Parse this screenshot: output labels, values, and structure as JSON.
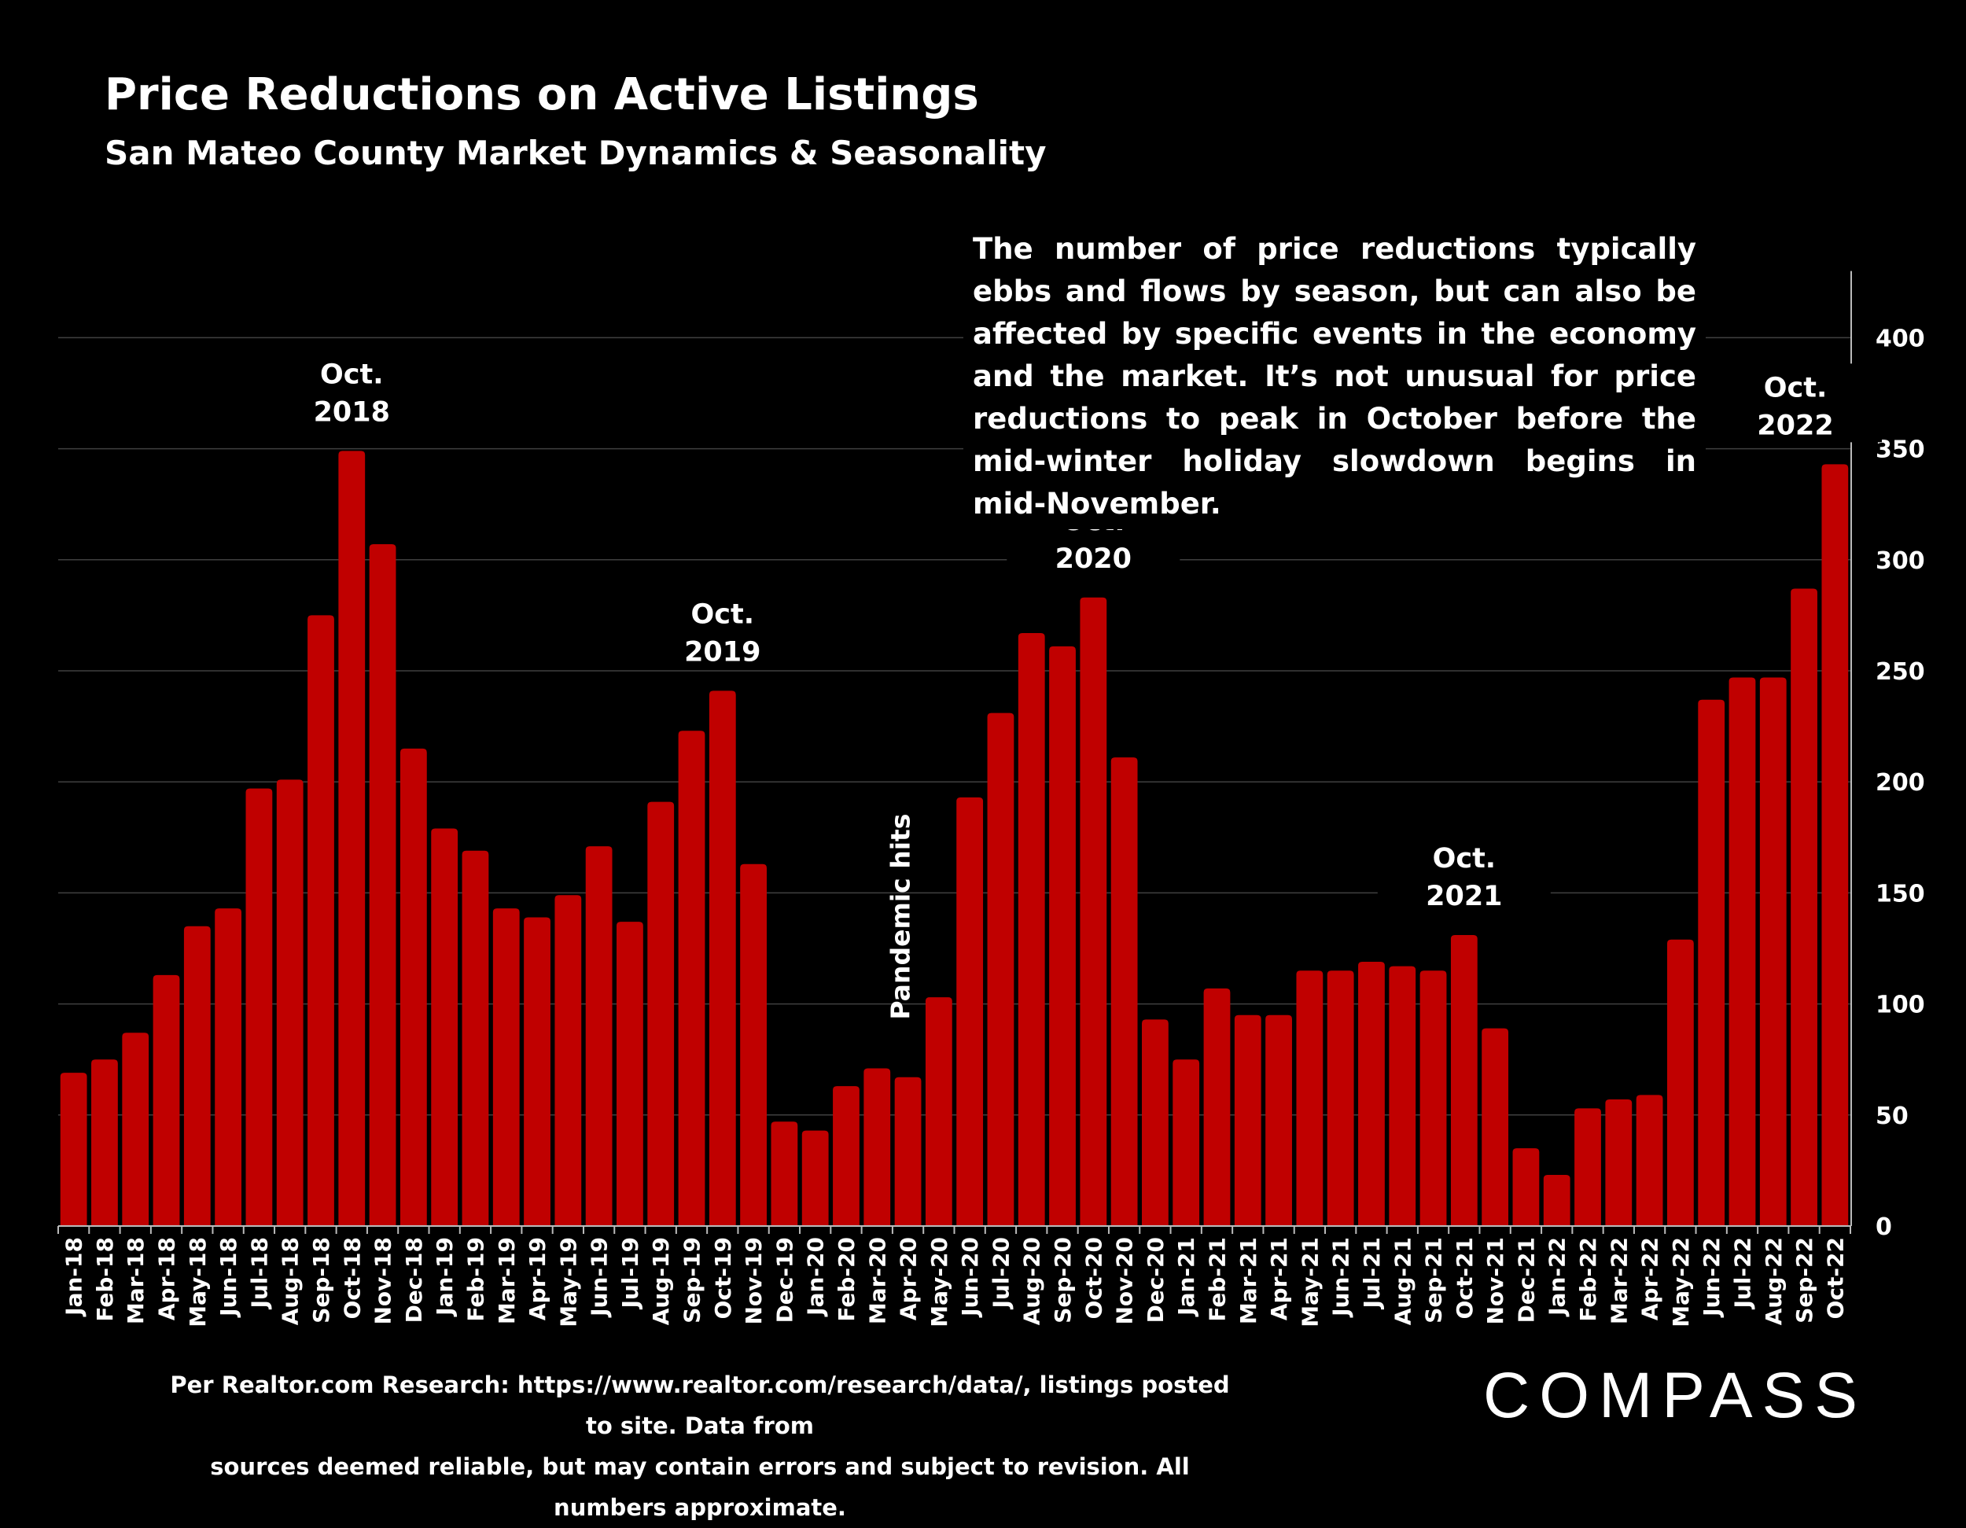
{
  "title": "Price Reductions on Active Listings",
  "subtitle": "San Mateo County Market Dynamics & Seasonality",
  "callout": "The number of price reductions typically ebbs and flows by season, but can also be affected by specific events in the economy and the market. It’s not unusual for price reductions to peak in October before the mid-winter holiday slowdown begins in mid-November.",
  "footer": {
    "line1": "Per Realtor.com Research:  https://www.realtor.com/research/data/, listings posted to site. Data from",
    "line2": "sources deemed reliable, but may contain errors and subject to revision. All numbers approximate."
  },
  "logo": {
    "text": "COMPASS"
  },
  "colors": {
    "background": "#000000",
    "bar": "#C00000",
    "text": "#FFFFFF",
    "grid": "#404040"
  },
  "chart_data": {
    "type": "bar",
    "categories": [
      "Jan-18",
      "Feb-18",
      "Mar-18",
      "Apr-18",
      "May-18",
      "Jun-18",
      "Jul-18",
      "Aug-18",
      "Sep-18",
      "Oct-18",
      "Nov-18",
      "Dec-18",
      "Jan-19",
      "Feb-19",
      "Mar-19",
      "Apr-19",
      "May-19",
      "Jun-19",
      "Jul-19",
      "Aug-19",
      "Sep-19",
      "Oct-19",
      "Nov-19",
      "Dec-19",
      "Jan-20",
      "Feb-20",
      "Mar-20",
      "Apr-20",
      "May-20",
      "Jun-20",
      "Jul-20",
      "Aug-20",
      "Sep-20",
      "Oct-20",
      "Nov-20",
      "Dec-20",
      "Jan-21",
      "Feb-21",
      "Mar-21",
      "Apr-21",
      "May-21",
      "Jun-21",
      "Jul-21",
      "Aug-21",
      "Sep-21",
      "Oct-21",
      "Nov-21",
      "Dec-21",
      "Jan-22",
      "Feb-22",
      "Mar-22",
      "Apr-22",
      "May-22",
      "Jun-22",
      "Jul-22",
      "Aug-22",
      "Sep-22",
      "Oct-22"
    ],
    "values": [
      69,
      75,
      87,
      113,
      135,
      143,
      197,
      201,
      275,
      349,
      307,
      215,
      179,
      169,
      143,
      139,
      149,
      171,
      137,
      191,
      223,
      241,
      163,
      47,
      43,
      63,
      71,
      67,
      103,
      193,
      231,
      267,
      261,
      283,
      211,
      93,
      75,
      107,
      95,
      95,
      115,
      115,
      119,
      117,
      115,
      131,
      89,
      35,
      23,
      53,
      57,
      59,
      129,
      237,
      247,
      247,
      287,
      343
    ],
    "ylim": [
      0,
      430
    ],
    "yticks": [
      0,
      50,
      100,
      150,
      200,
      250,
      300,
      350,
      400
    ],
    "y_axis_position": "right",
    "grid": true,
    "annotations": [
      {
        "category": "Oct-18",
        "lines": [
          "Oct.",
          "2018"
        ]
      },
      {
        "category": "Oct-19",
        "lines": [
          "Oct.",
          "2019"
        ]
      },
      {
        "category": "Oct-20",
        "lines": [
          "Oct.",
          "2020"
        ]
      },
      {
        "category": "Oct-21",
        "lines": [
          "Oct.",
          "2021"
        ]
      },
      {
        "category": "Oct-22",
        "lines": [
          "Oct.",
          "2022"
        ]
      },
      {
        "category": "Apr-20",
        "lines": [
          "Pandemic hits"
        ],
        "rotated": true
      }
    ]
  }
}
